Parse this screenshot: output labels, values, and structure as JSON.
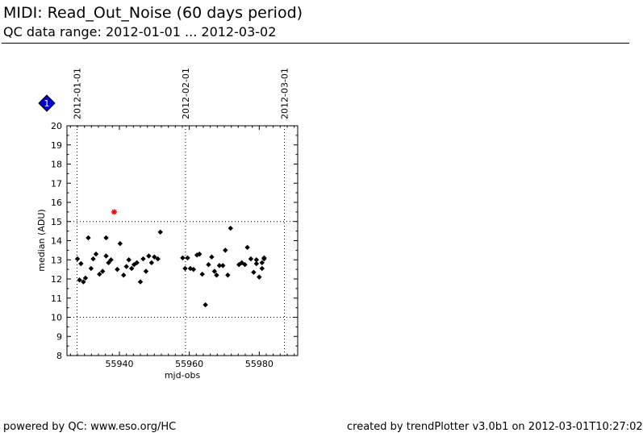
{
  "header": {
    "title": "MIDI: Read_Out_Noise (60 days period)",
    "subtitle": "QC data range: 2012-01-01 ... 2012-03-02"
  },
  "footer": {
    "left": "powered by QC: www.eso.org/HC",
    "right": "created by trendPlotter v3.0b1 on 2012-03-01T10:27:02"
  },
  "badge": {
    "label": "1",
    "color": "#0000dd"
  },
  "chart_data": {
    "type": "scatter",
    "xlabel": "mjd-obs",
    "ylabel": "median (ADU)",
    "xlim": [
      55925,
      55991
    ],
    "ylim": [
      8,
      20
    ],
    "xticks": [
      55940,
      55960,
      55980
    ],
    "yticks": [
      8,
      9,
      10,
      11,
      12,
      13,
      14,
      15,
      16,
      17,
      18,
      19,
      20
    ],
    "threshold_lines": [
      10,
      15
    ],
    "date_markers": [
      {
        "x": 55927.9,
        "label": "2012-01-01"
      },
      {
        "x": 55958.9,
        "label": "2012-02-01"
      },
      {
        "x": 55987.2,
        "label": "2012-03-01"
      }
    ],
    "series": [
      {
        "color": "#000000",
        "marker": "diamond",
        "points": [
          [
            55928.0,
            13.05
          ],
          [
            55928.6,
            11.95
          ],
          [
            55929.0,
            12.8
          ],
          [
            55929.7,
            11.85
          ],
          [
            55930.3,
            12.05
          ],
          [
            55931.1,
            14.15
          ],
          [
            55931.9,
            12.55
          ],
          [
            55932.5,
            13.05
          ],
          [
            55933.3,
            13.3
          ],
          [
            55934.3,
            12.25
          ],
          [
            55935.2,
            12.4
          ],
          [
            55936.2,
            14.15
          ],
          [
            55936.2,
            13.2
          ],
          [
            55936.9,
            12.85
          ],
          [
            55937.6,
            13.0
          ],
          [
            55939.4,
            12.5
          ],
          [
            55940.2,
            13.85
          ],
          [
            55941.2,
            12.2
          ],
          [
            55942.0,
            12.65
          ],
          [
            55942.7,
            13.0
          ],
          [
            55943.5,
            12.55
          ],
          [
            55944.2,
            12.75
          ],
          [
            55945.0,
            12.85
          ],
          [
            55946.0,
            11.85
          ],
          [
            55946.8,
            13.05
          ],
          [
            55947.6,
            12.4
          ],
          [
            55948.4,
            13.2
          ],
          [
            55949.2,
            12.85
          ],
          [
            55950.0,
            13.15
          ],
          [
            55951.0,
            13.05
          ],
          [
            55951.7,
            14.45
          ],
          [
            55958.1,
            13.1
          ],
          [
            55958.8,
            12.55
          ],
          [
            55959.5,
            13.1
          ],
          [
            55960.3,
            12.55
          ],
          [
            55961.2,
            12.5
          ],
          [
            55962.2,
            13.25
          ],
          [
            55962.9,
            13.3
          ],
          [
            55963.7,
            12.25
          ],
          [
            55964.6,
            10.65
          ],
          [
            55965.5,
            12.75
          ],
          [
            55966.4,
            13.15
          ],
          [
            55967.2,
            12.4
          ],
          [
            55967.8,
            12.2
          ],
          [
            55968.6,
            12.7
          ],
          [
            55969.6,
            12.7
          ],
          [
            55970.3,
            13.5
          ],
          [
            55971.0,
            12.2
          ],
          [
            55971.8,
            14.65
          ],
          [
            55974.2,
            12.75
          ],
          [
            55975.0,
            12.85
          ],
          [
            55975.9,
            12.75
          ],
          [
            55976.6,
            13.65
          ],
          [
            55977.6,
            13.05
          ],
          [
            55978.4,
            12.35
          ],
          [
            55979.2,
            13.0
          ],
          [
            55979.2,
            12.8
          ],
          [
            55980.0,
            12.1
          ],
          [
            55980.8,
            12.55
          ],
          [
            55980.8,
            12.85
          ],
          [
            55981.4,
            13.05
          ],
          [
            55981.4,
            13.1
          ]
        ]
      },
      {
        "color": "#ff0000",
        "marker": "star",
        "points": [
          [
            55938.5,
            15.5
          ]
        ]
      }
    ]
  }
}
